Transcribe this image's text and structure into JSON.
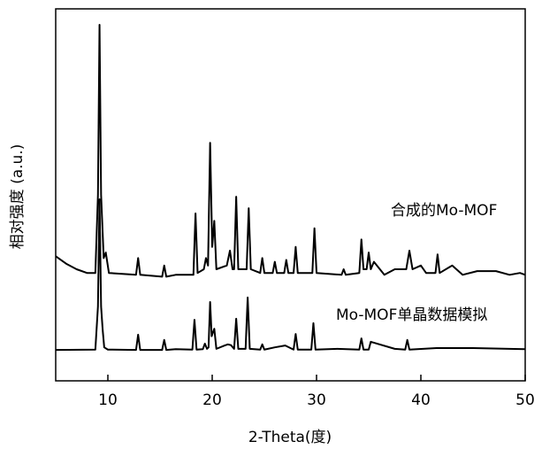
{
  "chart_data": {
    "type": "line",
    "x_label": "2-Theta(度)",
    "y_label": "相对强度 (a.u.)",
    "xlim": [
      5,
      50
    ],
    "xticks": [
      10,
      20,
      30,
      40,
      50
    ],
    "ylim": [
      0,
      100
    ],
    "series": [
      {
        "name": "合成的Mo-MOF",
        "color": "#000000",
        "x": [
          5,
          6,
          7,
          8,
          8.8,
          9.05,
          9.2,
          9.35,
          9.6,
          9.8,
          10.1,
          12.7,
          12.9,
          13.1,
          15.2,
          15.4,
          15.6,
          16.5,
          18.2,
          18.4,
          18.6,
          19.2,
          19.4,
          19.6,
          19.8,
          20.0,
          20.2,
          20.4,
          21.4,
          21.7,
          21.95,
          22.1,
          22.3,
          22.5,
          23.3,
          23.5,
          23.7,
          24.6,
          24.8,
          25.0,
          25.8,
          26.0,
          26.2,
          26.9,
          27.1,
          27.3,
          27.8,
          28.0,
          28.2,
          29.6,
          29.8,
          30.0,
          32.4,
          32.6,
          32.8,
          34.1,
          34.3,
          34.5,
          34.8,
          35.0,
          35.2,
          35.5,
          36.5,
          37.5,
          38.6,
          38.9,
          39.2,
          40,
          40.5,
          41.4,
          41.6,
          41.8,
          43,
          44,
          45.4,
          47.2,
          48.5,
          49.5,
          50
        ],
        "values": [
          33.5,
          31.5,
          30,
          29,
          29,
          50,
          95.7,
          50,
          33,
          34.5,
          29,
          28.5,
          33,
          28.5,
          28,
          31,
          28,
          28.5,
          28.5,
          45,
          29,
          30,
          33,
          31,
          64,
          36,
          43,
          30,
          31,
          35,
          30,
          30,
          49.5,
          30,
          30,
          46.4,
          30,
          29,
          33,
          29,
          29,
          32,
          29,
          29,
          32.5,
          29,
          29,
          36,
          29,
          29,
          41,
          29,
          28.5,
          30,
          28.5,
          29,
          38,
          30,
          30,
          34.5,
          30,
          32,
          28.5,
          30,
          30,
          35,
          30,
          31,
          29,
          29,
          34,
          29,
          31,
          28.5,
          29.5,
          29.5,
          28.5,
          29,
          28.5
        ]
      },
      {
        "name": "Mo-MOF单晶数据模拟",
        "color": "#000000",
        "x": [
          5,
          8.8,
          9.05,
          9.2,
          9.35,
          9.5,
          9.65,
          10,
          12.7,
          12.9,
          13.1,
          15.2,
          15.4,
          15.6,
          16.5,
          18.1,
          18.3,
          18.5,
          19.1,
          19.3,
          19.5,
          19.65,
          19.8,
          19.95,
          20.2,
          20.4,
          21.2,
          21.5,
          21.8,
          22.1,
          22.3,
          22.5,
          23.2,
          23.4,
          23.6,
          24.6,
          24.8,
          25,
          26,
          27,
          27.8,
          28,
          28.2,
          29.5,
          29.7,
          29.9,
          32,
          34.1,
          34.3,
          34.5,
          35,
          35.2,
          37.5,
          38.5,
          38.7,
          38.9,
          41.5,
          45,
          50
        ],
        "values": [
          8.3,
          8.4,
          20,
          48.8,
          20,
          13.8,
          9,
          8.4,
          8.3,
          12.4,
          8.3,
          8.3,
          11,
          8.3,
          8.5,
          8.4,
          16.4,
          8.4,
          8.5,
          10,
          8.6,
          9,
          21.2,
          12,
          14,
          8.6,
          9.5,
          9.8,
          9.6,
          8.6,
          16.7,
          8.6,
          8.6,
          22.4,
          8.6,
          8.4,
          9.8,
          8.4,
          9,
          9.5,
          8.4,
          12.6,
          8.4,
          8.4,
          15.5,
          8.4,
          8.6,
          8.4,
          11.4,
          8.4,
          8.4,
          10.5,
          8.6,
          8.4,
          11,
          8.4,
          8.8,
          8.8,
          8.5
        ]
      }
    ]
  }
}
